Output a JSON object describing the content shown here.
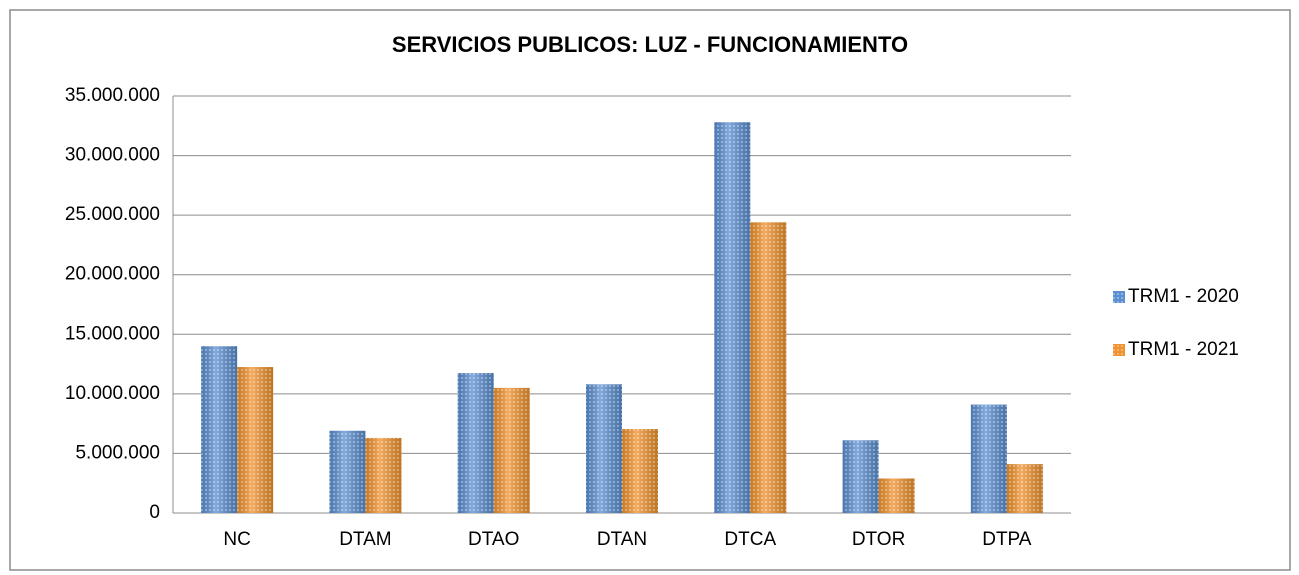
{
  "chart_data": {
    "type": "bar",
    "title": "SERVICIOS PUBLICOS: LUZ  - FUNCIONAMIENTO",
    "categories": [
      "NC",
      "DTAM",
      "DTAO",
      "DTAN",
      "DTCA",
      "DTOR",
      "DTPA"
    ],
    "series": [
      {
        "name": "TRM1 - 2020",
        "color": "#5b8fd1",
        "values": [
          14000000,
          6900000,
          11750000,
          10800000,
          32800000,
          6100000,
          9100000
        ]
      },
      {
        "name": "TRM1 - 2021",
        "color": "#f0922e",
        "values": [
          12250000,
          6300000,
          10500000,
          7050000,
          24400000,
          2900000,
          4100000
        ]
      }
    ],
    "ylim": [
      0,
      35000000
    ],
    "yticks": [
      0,
      {
        "value": 5000000,
        "label": "5.000.000"
      },
      {
        "value": 10000000,
        "label": "10.000.000"
      },
      {
        "value": 15000000,
        "label": "15.000.000"
      },
      {
        "value": 20000000,
        "label": "20.000.000"
      },
      {
        "value": 25000000,
        "label": "25.000.000"
      },
      {
        "value": 30000000,
        "label": "30.000.000"
      },
      {
        "value": 35000000,
        "label": "35.000.000"
      }
    ],
    "grid": true,
    "legend": "right"
  }
}
